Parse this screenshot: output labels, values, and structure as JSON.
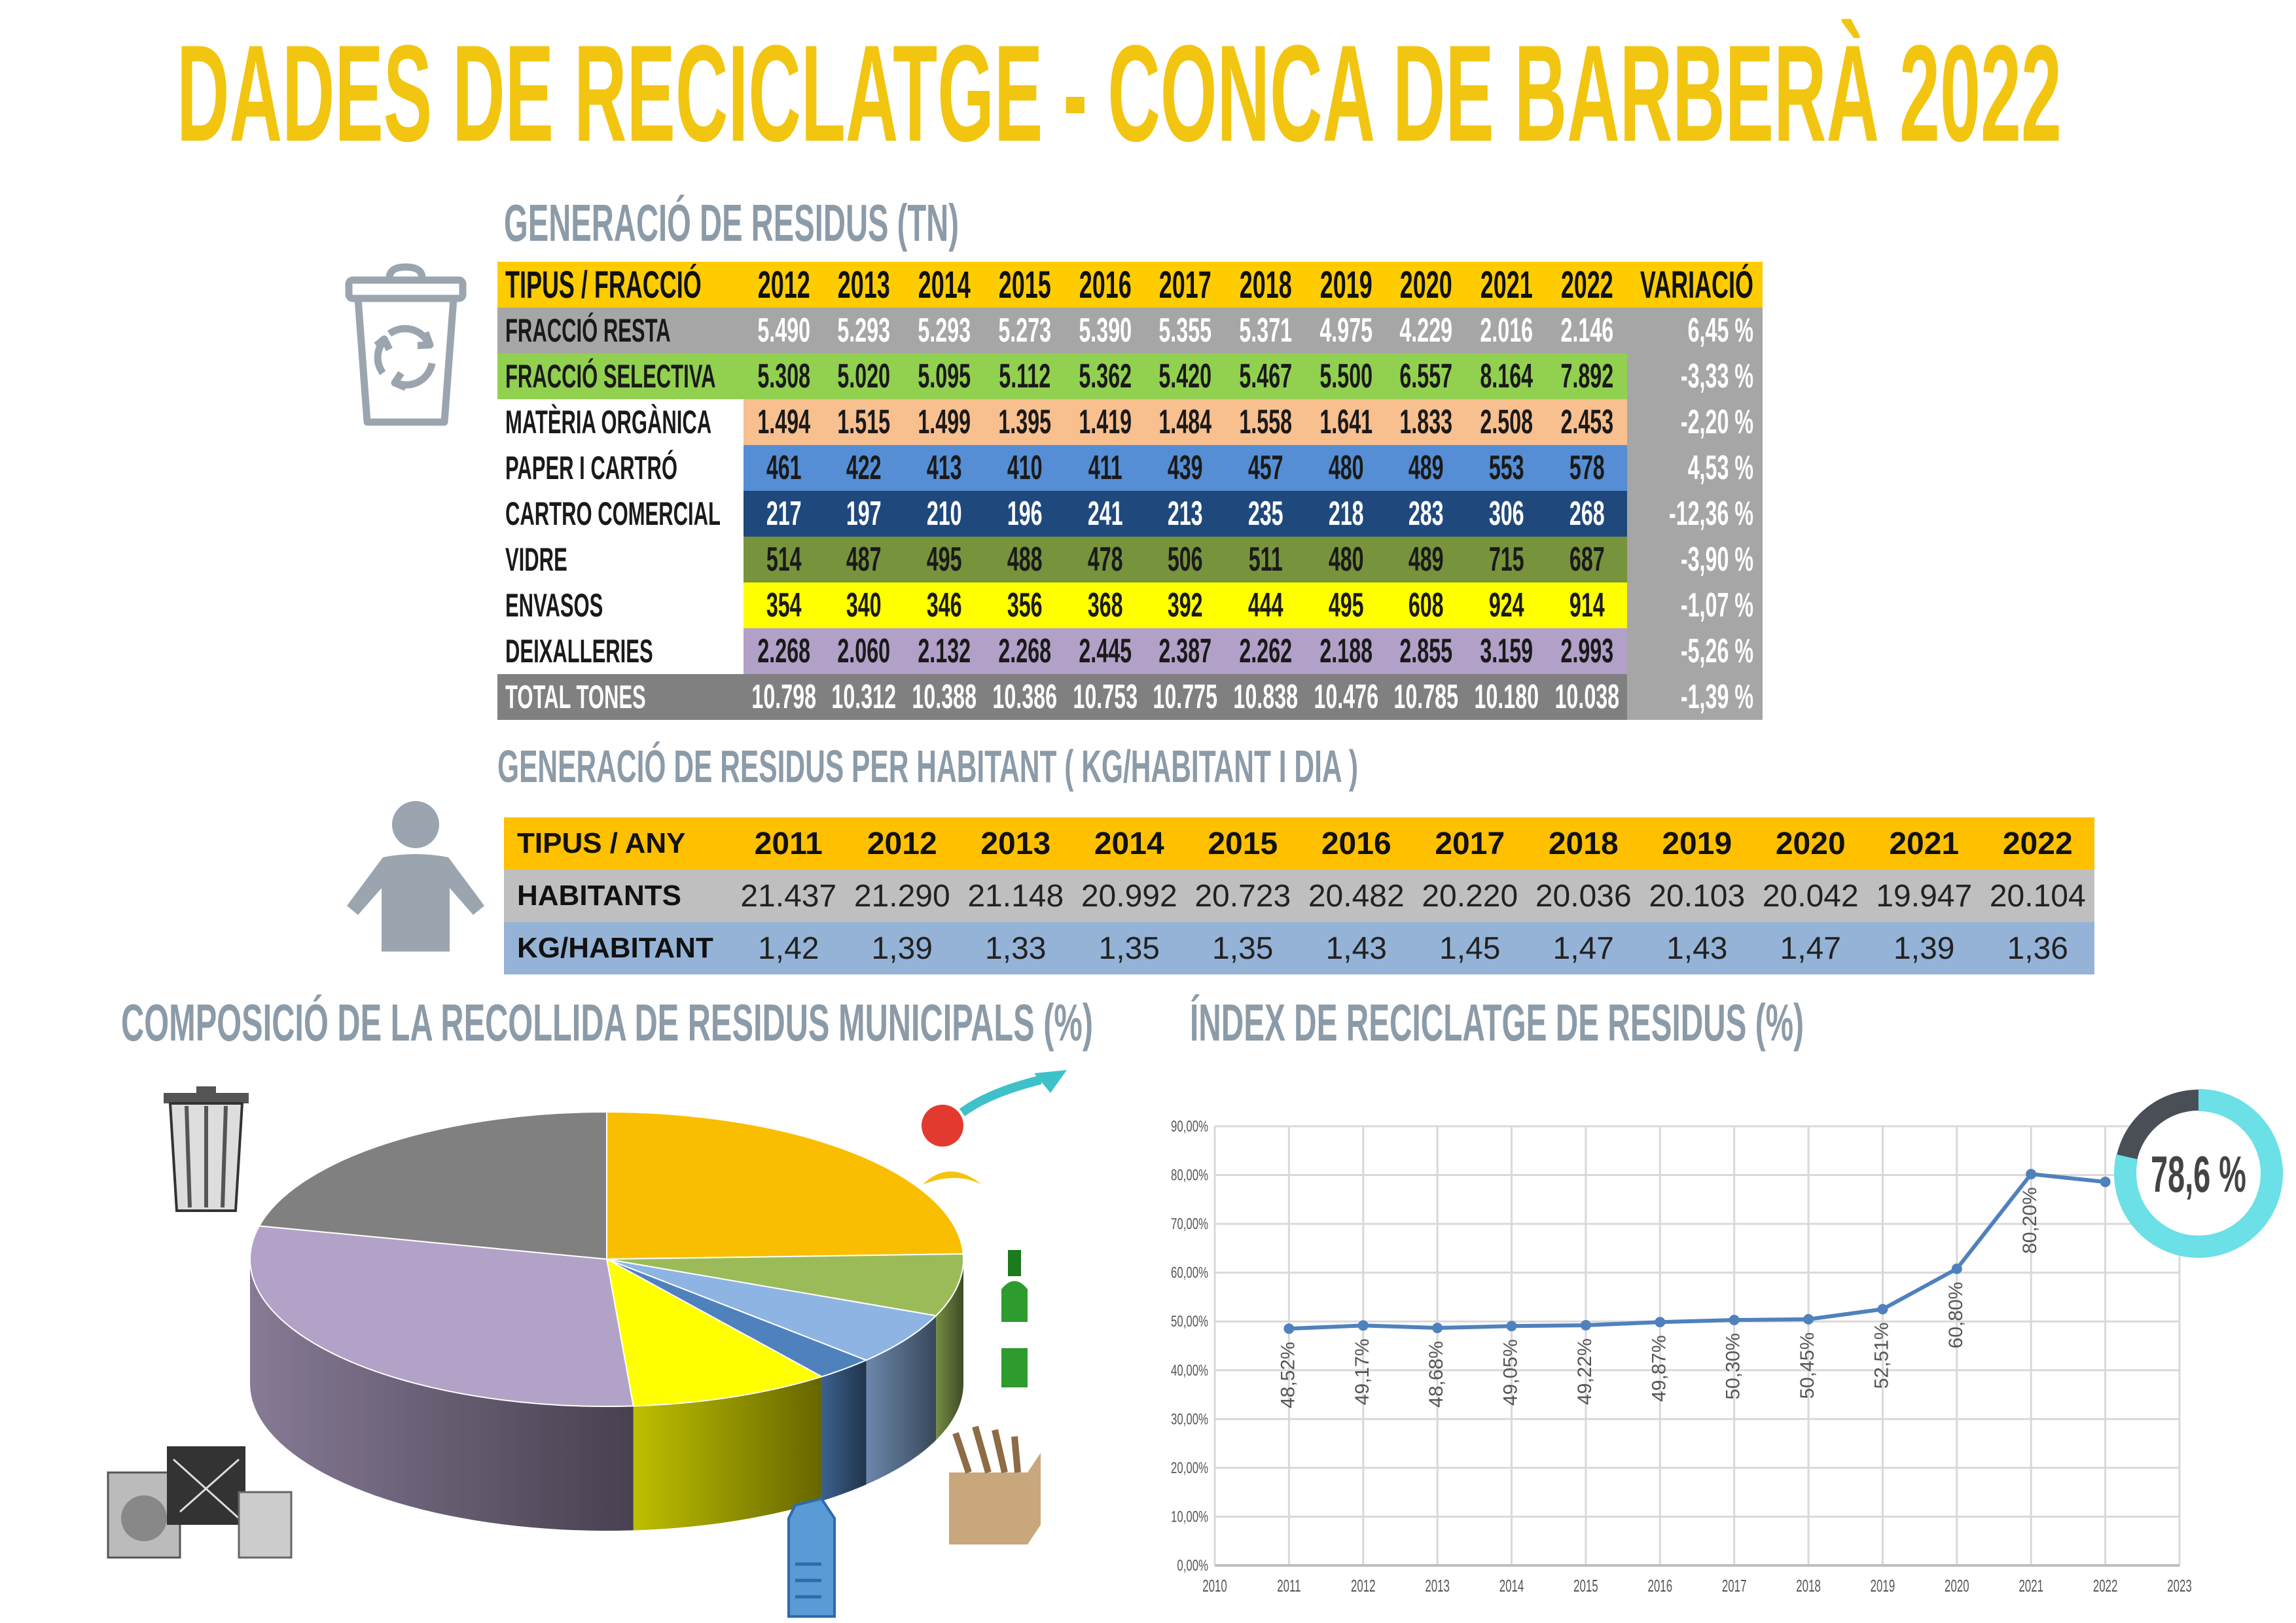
{
  "title": "DADES DE RECICLATGE - CONCA DE BARBERÀ 2022",
  "section1": {
    "title": "GENERACIÓ DE RESIDUS (TN)",
    "icon": "recycle-bin-icon",
    "headers": [
      "TIPUS  /  FRACCIÓ",
      "2012",
      "2013",
      "2014",
      "2015",
      "2016",
      "2017",
      "2018",
      "2019",
      "2020",
      "2021",
      "2022",
      "VARIACIÓ"
    ],
    "rows": [
      {
        "label": "FRACCIÓ RESTA",
        "values": [
          "5.490",
          "5.293",
          "5.293",
          "5.273",
          "5.390",
          "5.355",
          "5.371",
          "4.975",
          "4.229",
          "2.016",
          "2.146"
        ],
        "variation": "6,45 %",
        "color": "#A6A6A6",
        "text": "#ffffff",
        "labelBg": "#A6A6A6",
        "labelText": "#1a1a1a"
      },
      {
        "label": "FRACCIÓ SELECTIVA",
        "values": [
          "5.308",
          "5.020",
          "5.095",
          "5.112",
          "5.362",
          "5.420",
          "5.467",
          "5.500",
          "6.557",
          "8.164",
          "7.892"
        ],
        "variation": "-3,33 %",
        "color": "#92D050",
        "text": "#1a1a1a",
        "labelBg": "#92D050",
        "labelText": "#1a1a1a"
      },
      {
        "label": "MATÈRIA ORGÀNICA",
        "values": [
          "1.494",
          "1.515",
          "1.499",
          "1.395",
          "1.419",
          "1.484",
          "1.558",
          "1.641",
          "1.833",
          "2.508",
          "2.453"
        ],
        "variation": "-2,20 %",
        "color": "#F8BF8F",
        "text": "#1a1a1a",
        "labelBg": "#ffffff",
        "labelText": "#1a1a1a"
      },
      {
        "label": "PAPER I CARTRÓ",
        "values": [
          "461",
          "422",
          "413",
          "410",
          "411",
          "439",
          "457",
          "480",
          "489",
          "553",
          "578"
        ],
        "variation": "4,53 %",
        "color": "#558ED5",
        "text": "#1a1a1a",
        "labelBg": "#ffffff",
        "labelText": "#1a1a1a"
      },
      {
        "label": "CARTRO COMERCIAL",
        "values": [
          "217",
          "197",
          "210",
          "196",
          "241",
          "213",
          "235",
          "218",
          "283",
          "306",
          "268"
        ],
        "variation": "-12,36 %",
        "color": "#1F497D",
        "text": "#ffffff",
        "labelBg": "#ffffff",
        "labelText": "#1a1a1a"
      },
      {
        "label": "VIDRE",
        "values": [
          "514",
          "487",
          "495",
          "488",
          "478",
          "506",
          "511",
          "480",
          "489",
          "715",
          "687"
        ],
        "variation": "-3,90 %",
        "color": "#77933C",
        "text": "#1a1a1a",
        "labelBg": "#ffffff",
        "labelText": "#1a1a1a"
      },
      {
        "label": "ENVASOS",
        "values": [
          "354",
          "340",
          "346",
          "356",
          "368",
          "392",
          "444",
          "495",
          "608",
          "924",
          "914"
        ],
        "variation": "-1,07 %",
        "color": "#FFFF00",
        "text": "#1a1a1a",
        "labelBg": "#ffffff",
        "labelText": "#1a1a1a"
      },
      {
        "label": "DEIXALLERIES",
        "values": [
          "2.268",
          "2.060",
          "2.132",
          "2.268",
          "2.445",
          "2.387",
          "2.262",
          "2.188",
          "2.855",
          "3.159",
          "2.993"
        ],
        "variation": "-5,26 %",
        "color": "#B1A0C7",
        "text": "#1a1a1a",
        "labelBg": "#ffffff",
        "labelText": "#1a1a1a"
      },
      {
        "label": "TOTAL TONES",
        "values": [
          "10.798",
          "10.312",
          "10.388",
          "10.386",
          "10.753",
          "10.775",
          "10.838",
          "10.476",
          "10.785",
          "10.180",
          "10.038"
        ],
        "variation": "-1,39 %",
        "color": "#808080",
        "text": "#ffffff",
        "labelBg": "#808080",
        "labelText": "#ffffff"
      }
    ]
  },
  "section2": {
    "title": "GENERACIÓ DE RESIDUS PER HABITANT ( KG/HABITANT I DIA )",
    "icon": "person-icon",
    "headers": [
      "TIPUS / ANY",
      "2011",
      "2012",
      "2013",
      "2014",
      "2015",
      "2016",
      "2017",
      "2018",
      "2019",
      "2020",
      "2021",
      "2022"
    ],
    "rows": [
      {
        "label": "HABITANTS",
        "values": [
          "21.437",
          "21.290",
          "21.148",
          "20.992",
          "20.723",
          "20.482",
          "20.220",
          "20.036",
          "20.103",
          "20.042",
          "19.947",
          "20.104"
        ],
        "color": "#BFBFBF"
      },
      {
        "label": "KG/HABITANT",
        "values": [
          "1,42",
          "1,39",
          "1,33",
          "1,35",
          "1,35",
          "1,43",
          "1,45",
          "1,47",
          "1,43",
          "1,47",
          "1,39",
          "1,36"
        ],
        "color": "#95B3D7"
      }
    ]
  },
  "chart_data": [
    {
      "type": "pie",
      "title": "COMPOSICIÓ DE LA RECOLLIDA DE RESIDUS MUNICIPALS  (%)",
      "style": "3d",
      "slices": [
        {
          "category": "Matèria orgànica",
          "value": 2453,
          "color": "#F9BE00",
          "icon": "food-waste-icon"
        },
        {
          "category": "Vidre",
          "value": 687,
          "color": "#9BBB59",
          "icon": "glass-bottle-icon"
        },
        {
          "category": "Paper i cartró",
          "value": 578,
          "color": "#8EB4E3",
          "icon": "cardboard-box-icon"
        },
        {
          "category": "Cartró comercial",
          "value": 268,
          "color": "#4F81BD",
          "icon": "cardboard-box-icon"
        },
        {
          "category": "Envasos",
          "value": 914,
          "color": "#FFFF00",
          "icon": "plastic-jug-icon"
        },
        {
          "category": "Deixalleries",
          "value": 2993,
          "color": "#B3A2C7",
          "icon": "appliances-icon"
        },
        {
          "category": "Fracció resta",
          "value": 2146,
          "color": "#808080",
          "icon": "trash-can-icon"
        }
      ]
    },
    {
      "type": "line",
      "title": "ÍNDEX DE RECICLATGE DE RESIDUS (%)",
      "x": [
        2011,
        2012,
        2013,
        2014,
        2015,
        2016,
        2017,
        2018,
        2019,
        2020,
        2021,
        2022
      ],
      "y": [
        48.52,
        49.17,
        48.68,
        49.05,
        49.22,
        49.87,
        50.3,
        50.45,
        52.51,
        60.8,
        80.2,
        78.6
      ],
      "data_labels": [
        "48,52%",
        "49,17%",
        "48,68%",
        "49,05%",
        "49,22%",
        "49,87%",
        "50,30%",
        "50,45%",
        "52,51%",
        "60,80%",
        "80,20%",
        ""
      ],
      "xlim": [
        2010,
        2023
      ],
      "ylim": [
        0,
        90
      ],
      "yticks": [
        "0,00%",
        "10,00%",
        "20,00%",
        "30,00%",
        "40,00%",
        "50,00%",
        "60,00%",
        "70,00%",
        "80,00%",
        "90,00%"
      ],
      "xticks": [
        "2010",
        "2011",
        "2012",
        "2013",
        "2014",
        "2015",
        "2016",
        "2017",
        "2018",
        "2019",
        "2020",
        "2021",
        "2022",
        "2023"
      ],
      "grid": true,
      "color": "#4F81BD"
    }
  ],
  "gauge": {
    "label": "78,6 %",
    "value": 78.6,
    "color": "#6BE0E6",
    "track": "#4A4F57"
  }
}
